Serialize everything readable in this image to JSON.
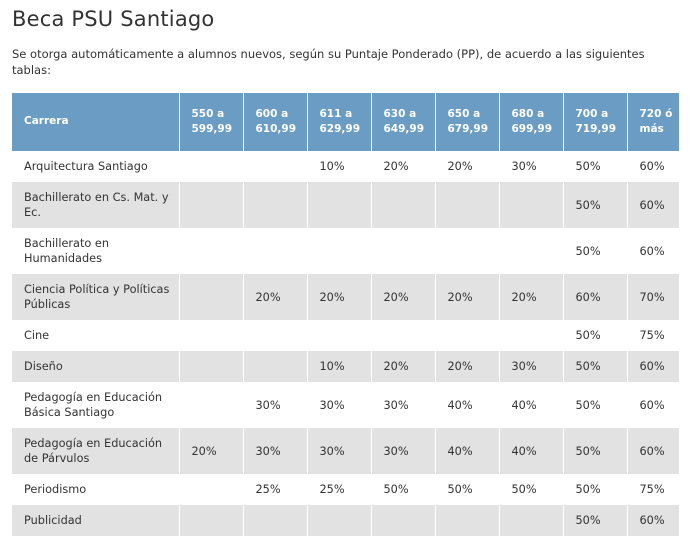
{
  "page": {
    "title": "Beca PSU Santiago",
    "intro": "Se otorga automáticamente a alumnos nuevos, según su Puntaje Ponderado (PP), de acuerdo a las siguientes tablas:"
  },
  "table": {
    "headers": [
      "Carrera",
      "550 a 599,99",
      "600 a 610,99",
      "611 a 629,99",
      "630 a 649,99",
      "650 a 679,99",
      "680 a 699,99",
      "700 a 719,99",
      "720 ó más"
    ],
    "rows": [
      {
        "carrera": "Arquitectura Santiago",
        "cells": [
          "",
          "",
          "10%",
          "20%",
          "20%",
          "30%",
          "50%",
          "60%"
        ]
      },
      {
        "carrera": "Bachillerato en Cs. Mat. y Ec.",
        "cells": [
          "",
          "",
          "",
          "",
          "",
          "",
          "50%",
          "60%"
        ]
      },
      {
        "carrera": "Bachillerato en Humanidades",
        "cells": [
          "",
          "",
          "",
          "",
          "",
          "",
          "50%",
          "60%"
        ]
      },
      {
        "carrera": "Ciencia Política y Políticas Públicas",
        "cells": [
          "",
          "20%",
          "20%",
          "20%",
          "20%",
          "20%",
          "60%",
          "70%"
        ]
      },
      {
        "carrera": "Cine",
        "cells": [
          "",
          "",
          "",
          "",
          "",
          "",
          "50%",
          "75%"
        ]
      },
      {
        "carrera": "Diseño",
        "cells": [
          "",
          "",
          "10%",
          "20%",
          "20%",
          "30%",
          "50%",
          "60%"
        ]
      },
      {
        "carrera": "Pedagogía en Educación Básica Santiago",
        "cells": [
          "",
          "30%",
          "30%",
          "30%",
          "40%",
          "40%",
          "50%",
          "60%"
        ]
      },
      {
        "carrera": "Pedagogía en Educación de Párvulos",
        "cells": [
          "20%",
          "30%",
          "30%",
          "30%",
          "40%",
          "40%",
          "50%",
          "60%"
        ]
      },
      {
        "carrera": "Periodismo",
        "cells": [
          "",
          "25%",
          "25%",
          "50%",
          "50%",
          "50%",
          "50%",
          "75%"
        ]
      },
      {
        "carrera": "Publicidad",
        "cells": [
          "",
          "",
          "",
          "",
          "",
          "",
          "50%",
          "60%"
        ]
      }
    ]
  },
  "colors": {
    "header_bg": "#6b9cc3",
    "row_alt_bg": "#e2e2e2",
    "text": "#333333"
  }
}
